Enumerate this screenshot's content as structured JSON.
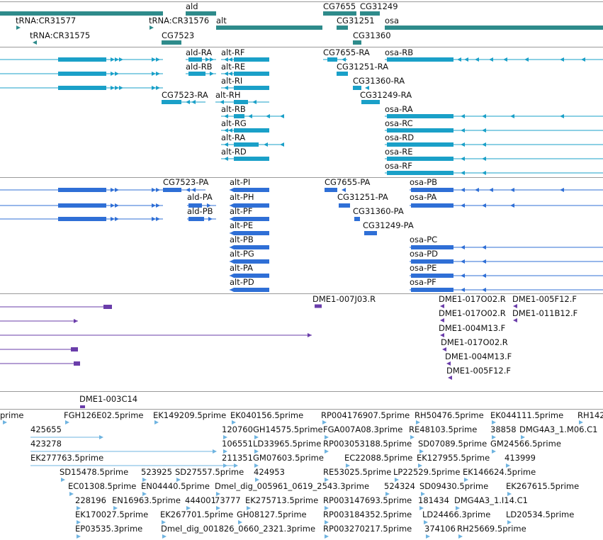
{
  "track_colors": {
    "gene": "#2e8b8b",
    "mrna": "#1aa0c8",
    "cds": "#2f6fd6",
    "est": "#6a3daa",
    "cdna": "#6fb4e0",
    "divider": "#9a9a9a"
  },
  "tracks": [
    {
      "name": "gene-track",
      "features": [
        {
          "label": "ald",
          "color": "gene"
        },
        {
          "label": "CG7655",
          "color": "gene"
        },
        {
          "label": "CG31249",
          "color": "gene"
        },
        {
          "label": "tRNA:CR31577",
          "color": "gene"
        },
        {
          "label": "tRNA:CR31576",
          "color": "gene"
        },
        {
          "label": "alt",
          "color": "gene"
        },
        {
          "label": "CG31251",
          "color": "gene"
        },
        {
          "label": "osa",
          "color": "gene"
        },
        {
          "label": "tRNA:CR31575",
          "color": "gene"
        },
        {
          "label": "CG7523",
          "color": "gene"
        },
        {
          "label": "CG31360",
          "color": "gene"
        }
      ]
    },
    {
      "name": "mrna-track",
      "features": [
        {
          "label": "ald-RA",
          "color": "mrna"
        },
        {
          "label": "alt-RF",
          "color": "mrna"
        },
        {
          "label": "CG7655-RA",
          "color": "mrna"
        },
        {
          "label": "osa-RB",
          "color": "mrna"
        },
        {
          "label": "ald-RB",
          "color": "mrna"
        },
        {
          "label": "alt-RE",
          "color": "mrna"
        },
        {
          "label": "CG31251-RA",
          "color": "mrna"
        },
        {
          "label": "alt-RI",
          "color": "mrna"
        },
        {
          "label": "CG31360-RA",
          "color": "mrna"
        },
        {
          "label": "CG7523-RA",
          "color": "mrna"
        },
        {
          "label": "alt-RH",
          "color": "mrna"
        },
        {
          "label": "CG31249-RA",
          "color": "mrna"
        },
        {
          "label": "alt-RB",
          "color": "mrna"
        },
        {
          "label": "osa-RA",
          "color": "mrna"
        },
        {
          "label": "alt-RG",
          "color": "mrna"
        },
        {
          "label": "osa-RC",
          "color": "mrna"
        },
        {
          "label": "alt-RA",
          "color": "mrna"
        },
        {
          "label": "osa-RD",
          "color": "mrna"
        },
        {
          "label": "alt-RD",
          "color": "mrna"
        },
        {
          "label": "osa-RE",
          "color": "mrna"
        },
        {
          "label": "osa-RF",
          "color": "mrna"
        }
      ]
    },
    {
      "name": "cds-track",
      "features": [
        {
          "label": "CG7523-PA",
          "color": "cds"
        },
        {
          "label": "alt-PI",
          "color": "cds"
        },
        {
          "label": "CG7655-PA",
          "color": "cds"
        },
        {
          "label": "osa-PB",
          "color": "cds"
        },
        {
          "label": "ald-PA",
          "color": "cds"
        },
        {
          "label": "alt-PH",
          "color": "cds"
        },
        {
          "label": "CG31251-PA",
          "color": "cds"
        },
        {
          "label": "osa-PA",
          "color": "cds"
        },
        {
          "label": "ald-PB",
          "color": "cds"
        },
        {
          "label": "alt-PF",
          "color": "cds"
        },
        {
          "label": "CG31360-PA",
          "color": "cds"
        },
        {
          "label": "alt-PE",
          "color": "cds"
        },
        {
          "label": "CG31249-PA",
          "color": "cds"
        },
        {
          "label": "alt-PB",
          "color": "cds"
        },
        {
          "label": "osa-PC",
          "color": "cds"
        },
        {
          "label": "alt-PG",
          "color": "cds"
        },
        {
          "label": "osa-PD",
          "color": "cds"
        },
        {
          "label": "alt-PA",
          "color": "cds"
        },
        {
          "label": "osa-PE",
          "color": "cds"
        },
        {
          "label": "alt-PD",
          "color": "cds"
        },
        {
          "label": "osa-PF",
          "color": "cds"
        }
      ]
    },
    {
      "name": "est-track",
      "features": [
        {
          "label": "DME1-007J03.R",
          "color": "est"
        },
        {
          "label": "DME1-017O02.R",
          "color": "est"
        },
        {
          "label": "DME1-005F12.F",
          "color": "est"
        },
        {
          "label": "DME1-017O02.R",
          "color": "est"
        },
        {
          "label": "DME1-011B12.F",
          "color": "est"
        },
        {
          "label": "DME1-004M13.F",
          "color": "est"
        },
        {
          "label": "DME1-017O02.R",
          "color": "est"
        },
        {
          "label": "DME1-004M13.F",
          "color": "est"
        },
        {
          "label": "DME1-005F12.F",
          "color": "est"
        },
        {
          "label": "DME1-003C14",
          "color": "est"
        }
      ]
    },
    {
      "name": "cdna-track",
      "features": [
        {
          "label": "prime",
          "color": "cdna"
        },
        {
          "label": "FGH126E02.5prime",
          "color": "cdna"
        },
        {
          "label": "EK149209.5prime",
          "color": "cdna"
        },
        {
          "label": "EK040156.5prime",
          "color": "cdna"
        },
        {
          "label": "RP004176907.5prime",
          "color": "cdna"
        },
        {
          "label": "RH50476.5prime",
          "color": "cdna"
        },
        {
          "label": "EK044111.5prime",
          "color": "cdna"
        },
        {
          "label": "RH142",
          "color": "cdna"
        },
        {
          "label": "425655",
          "color": "cdna"
        },
        {
          "label": "120760",
          "color": "cdna"
        },
        {
          "label": "GH14575.5prime",
          "color": "cdna"
        },
        {
          "label": "FGA007A08.3prime",
          "color": "cdna"
        },
        {
          "label": "RE48103.5prime",
          "color": "cdna"
        },
        {
          "label": "38858",
          "color": "cdna"
        },
        {
          "label": "DMG4A3_1.M06.C1",
          "color": "cdna"
        },
        {
          "label": "423278",
          "color": "cdna"
        },
        {
          "label": "106551",
          "color": "cdna"
        },
        {
          "label": "LD33965.5prime",
          "color": "cdna"
        },
        {
          "label": "RP003053188.5prime",
          "color": "cdna"
        },
        {
          "label": "SD07089.5prime",
          "color": "cdna"
        },
        {
          "label": "GM24566.5prime",
          "color": "cdna"
        },
        {
          "label": "EK277763.5prime",
          "color": "cdna"
        },
        {
          "label": "211351",
          "color": "cdna"
        },
        {
          "label": "GM07603.5prime",
          "color": "cdna"
        },
        {
          "label": "EC22088.5prime",
          "color": "cdna"
        },
        {
          "label": "EK127955.5prime",
          "color": "cdna"
        },
        {
          "label": "413999",
          "color": "cdna"
        },
        {
          "label": "SD15478.5prime",
          "color": "cdna"
        },
        {
          "label": "523925",
          "color": "cdna"
        },
        {
          "label": "SD27557.5prime",
          "color": "cdna"
        },
        {
          "label": "424953",
          "color": "cdna"
        },
        {
          "label": "RE53025.5prime",
          "color": "cdna"
        },
        {
          "label": "LP22529.5prime",
          "color": "cdna"
        },
        {
          "label": "EK146624.5prime",
          "color": "cdna"
        },
        {
          "label": "EC01308.5prime",
          "color": "cdna"
        },
        {
          "label": "EN04440.5prime",
          "color": "cdna"
        },
        {
          "label": "Dmel_dig_005961_0619_2543.3prime",
          "color": "cdna"
        },
        {
          "label": "524324",
          "color": "cdna"
        },
        {
          "label": "SD09430.5prime",
          "color": "cdna"
        },
        {
          "label": "EK267615.5prime",
          "color": "cdna"
        },
        {
          "label": "228196",
          "color": "cdna"
        },
        {
          "label": "EN16963.5prime",
          "color": "cdna"
        },
        {
          "label": "444001",
          "color": "cdna"
        },
        {
          "label": "73777",
          "color": "cdna"
        },
        {
          "label": "EK275713.5prime",
          "color": "cdna"
        },
        {
          "label": "RP003147693.5prime",
          "color": "cdna"
        },
        {
          "label": "181434",
          "color": "cdna"
        },
        {
          "label": "DMG4A3_1.I14.C1",
          "color": "cdna"
        },
        {
          "label": "EK170027.5prime",
          "color": "cdna"
        },
        {
          "label": "EK267701.5prime",
          "color": "cdna"
        },
        {
          "label": "GH08127.5prime",
          "color": "cdna"
        },
        {
          "label": "RP003184352.5prime",
          "color": "cdna"
        },
        {
          "label": "LD24466.3prime",
          "color": "cdna"
        },
        {
          "label": "LD20534.5prime",
          "color": "cdna"
        },
        {
          "label": "EP03535.3prime",
          "color": "cdna"
        },
        {
          "label": "Dmel_dig_001826_0660_2321.3prime",
          "color": "cdna"
        },
        {
          "label": "RP003270217.5prime",
          "color": "cdna"
        },
        {
          "label": "374106",
          "color": "cdna"
        },
        {
          "label": "RH25669.5prime",
          "color": "cdna"
        }
      ]
    }
  ]
}
